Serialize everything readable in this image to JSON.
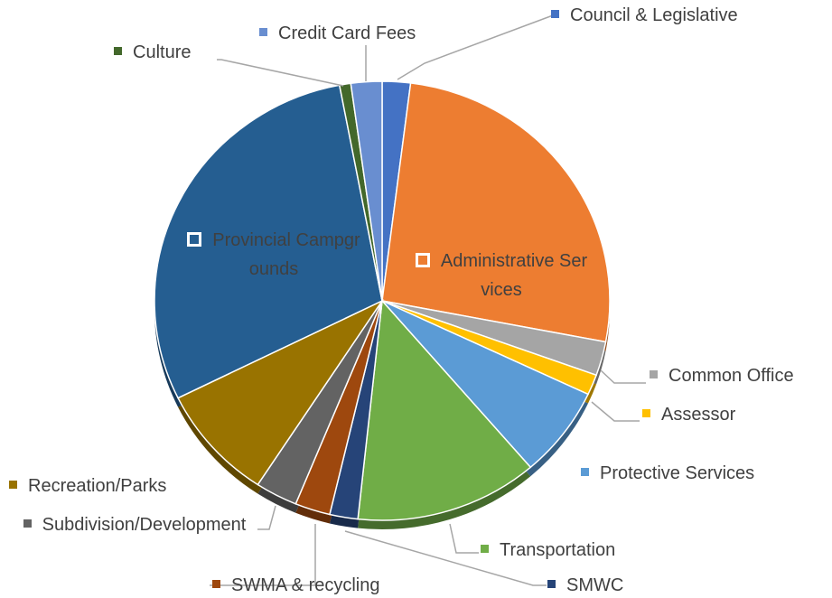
{
  "chart_data": {
    "type": "pie",
    "categories": [
      "Council & Legislative",
      "Administrative Services",
      "Common Office",
      "Assessor",
      "Protective Services",
      "Transportation",
      "SMWC",
      "SWMA & recycling",
      "Subdivision/Development",
      "Recreation/Parks",
      "Provincial Campgrounds",
      "Culture",
      "Credit Card Fees"
    ],
    "values": [
      2,
      26,
      2.5,
      1.5,
      6.7,
      13,
      2,
      2.5,
      3,
      8.5,
      29.3,
      0.8,
      2.2
    ],
    "colors": [
      "#4472c4",
      "#ed7d31",
      "#a5a5a5",
      "#ffc000",
      "#5b9bd5",
      "#70ad47",
      "#264478",
      "#9e480e",
      "#636363",
      "#997300",
      "#255e91",
      "#43682b",
      "#698ed0"
    ]
  }
}
